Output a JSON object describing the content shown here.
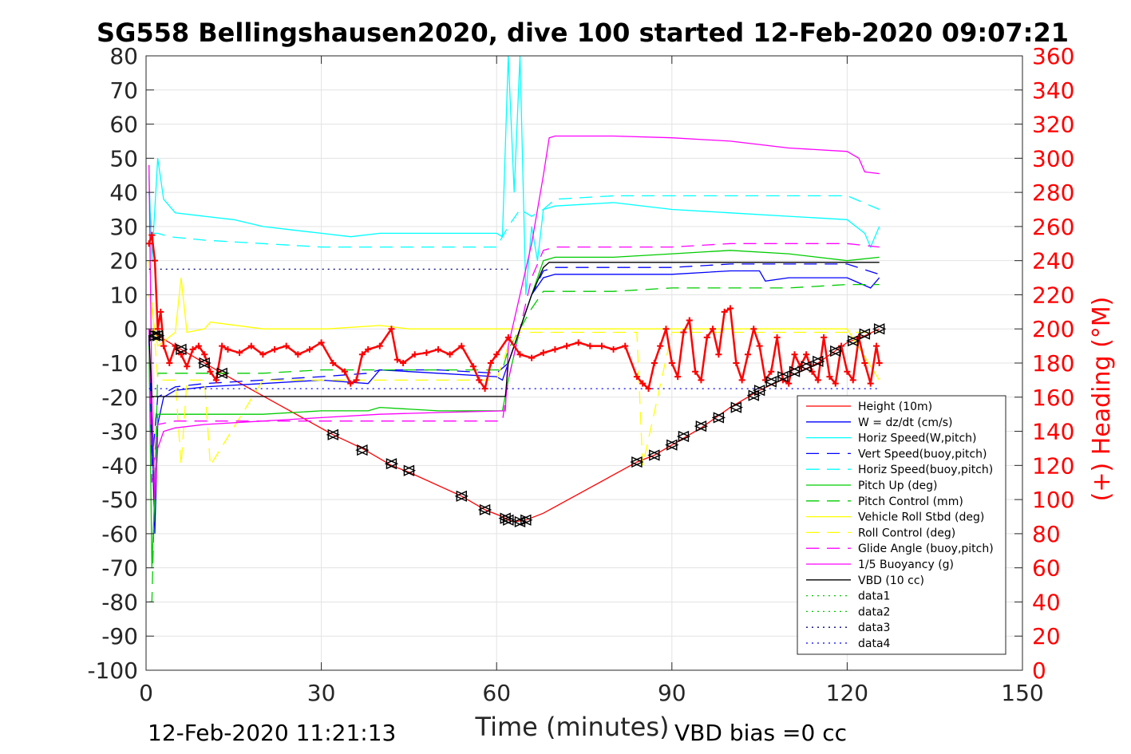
{
  "chart_data": {
    "type": "line",
    "title": "SG558 Bellingshausen2020, dive 100 started 12-Feb-2020 09:07:21",
    "xlabel": "Time (minutes)",
    "ylabel": "",
    "ylabel_right": "(+) Heading (°M)",
    "xlim": [
      0,
      150
    ],
    "ylim": [
      -100,
      80
    ],
    "ylim_right": [
      0,
      360
    ],
    "x_ticks": [
      "0",
      "30",
      "60",
      "90",
      "120",
      "150"
    ],
    "y_ticks": [
      "-100",
      "-90",
      "-80",
      "-70",
      "-60",
      "-50",
      "-40",
      "-30",
      "-20",
      "-10",
      "0",
      "10",
      "20",
      "30",
      "40",
      "50",
      "60",
      "70",
      "80"
    ],
    "y_ticks_right": [
      "0",
      "20",
      "40",
      "60",
      "80",
      "100",
      "120",
      "140",
      "160",
      "180",
      "200",
      "220",
      "240",
      "260",
      "280",
      "300",
      "320",
      "340",
      "360"
    ],
    "grid": true,
    "legend_position": "lower-right",
    "footer_left": "12-Feb-2020 11:21:13",
    "footer_right": "VBD bias =0 cc",
    "series": [
      {
        "name": "Height (10m)",
        "color": "#ff0000",
        "style": "solid",
        "x": [
          0.5,
          2,
          6,
          10,
          13,
          32,
          37,
          42,
          45,
          54,
          58,
          61,
          62,
          63,
          65,
          68,
          84,
          87,
          90,
          95,
          100,
          105,
          110,
          115,
          120,
          123,
          125.5
        ],
        "y": [
          0,
          -2,
          -6,
          -10,
          -13,
          -31,
          -35,
          -40,
          -42,
          -49,
          -53,
          -55,
          -56,
          -56.5,
          -56,
          -54,
          -39,
          -37,
          -34,
          -29,
          -23,
          -18,
          -14,
          -10,
          -4,
          -2,
          0
        ]
      },
      {
        "name": "W = dz/dt (cm/s)",
        "color": "#0000ff",
        "style": "solid",
        "x": [
          0.5,
          1,
          1.5,
          2,
          3,
          5,
          10,
          20,
          30,
          38,
          40,
          50,
          60,
          61,
          62,
          64,
          66,
          68,
          70,
          80,
          90,
          100,
          105,
          106,
          110,
          120,
          124,
          125.5
        ],
        "y": [
          -2,
          -30,
          -60,
          -28,
          -20,
          -18,
          -17,
          -16,
          -15,
          -16,
          -12,
          -13,
          -14,
          -15,
          -10,
          0,
          10,
          15,
          16,
          16,
          16,
          17,
          17,
          14,
          15,
          15,
          12,
          15
        ]
      },
      {
        "name": "Horiz Speed(W,pitch)",
        "color": "#00ffff",
        "style": "solid",
        "x": [
          0.5,
          1,
          2,
          3,
          5,
          10,
          15,
          20,
          25,
          30,
          35,
          40,
          50,
          60,
          61,
          62,
          63,
          64,
          65,
          66,
          67,
          68,
          70,
          80,
          90,
          100,
          110,
          120,
          123,
          124,
          125.5
        ],
        "y": [
          45,
          20,
          50,
          38,
          34,
          33,
          32,
          30,
          29,
          28,
          27,
          28,
          28,
          28,
          27,
          80,
          40,
          80,
          10,
          30,
          20,
          35,
          36,
          37,
          35,
          34,
          33,
          32,
          28,
          24,
          30
        ]
      },
      {
        "name": "Vert Speed(buoy,pitch)",
        "color": "#0000ff",
        "style": "dashed",
        "x": [
          0.5,
          1,
          2,
          5,
          10,
          20,
          30,
          38,
          40,
          50,
          60,
          62,
          64,
          66,
          68,
          70,
          80,
          90,
          100,
          110,
          120,
          125.5
        ],
        "y": [
          -3,
          -40,
          -20,
          -17,
          -16,
          -15,
          -14,
          -13,
          -12,
          -12,
          -13,
          -10,
          0,
          10,
          17,
          18,
          18,
          18,
          19,
          19,
          19,
          16
        ]
      },
      {
        "name": "Horiz Speed(buoy,pitch)",
        "color": "#00ffff",
        "style": "dashed",
        "x": [
          0.5,
          1,
          2,
          4,
          10,
          20,
          30,
          40,
          50,
          60,
          62,
          64,
          66,
          68,
          70,
          80,
          90,
          100,
          110,
          120,
          125.5
        ],
        "y": [
          40,
          28,
          28,
          27,
          26,
          25,
          24,
          24,
          24,
          24,
          30,
          35,
          33,
          35,
          38,
          39,
          39,
          39,
          39,
          39,
          35
        ]
      },
      {
        "name": "Pitch Up (deg)",
        "color": "#00cc00",
        "style": "solid",
        "x": [
          0.5,
          1,
          2,
          5,
          10,
          20,
          30,
          38,
          40,
          50,
          60,
          61,
          62,
          64,
          66,
          68,
          70,
          80,
          90,
          100,
          110,
          120,
          125.5
        ],
        "y": [
          -5,
          -70,
          -25,
          -25,
          -25,
          -25,
          -24,
          -24,
          -23,
          -24,
          -24,
          -24,
          -15,
          0,
          10,
          20,
          21,
          21,
          22,
          23,
          22,
          20,
          21
        ]
      },
      {
        "name": "Pitch Control (mm)",
        "color": "#00cc00",
        "style": "dashed",
        "x": [
          0.5,
          1,
          2,
          5,
          10,
          20,
          30,
          40,
          50,
          60,
          61,
          62,
          64,
          66,
          68,
          70,
          80,
          90,
          100,
          110,
          120,
          125.5
        ],
        "y": [
          -80,
          -80,
          -13,
          -13,
          -13,
          -13,
          -12,
          -12,
          -12,
          -12,
          -12,
          -6,
          0,
          6,
          11,
          11,
          11,
          12,
          12,
          12,
          13,
          13
        ]
      },
      {
        "name": "Vehicle Roll Stbd (deg)",
        "color": "#ffff00",
        "style": "solid",
        "x": [
          0.5,
          2,
          5,
          6,
          7,
          10,
          11,
          20,
          30,
          31,
          40,
          45,
          50,
          55,
          60,
          62,
          64,
          70,
          80,
          85,
          90,
          95,
          100,
          105,
          110,
          115,
          120,
          125.5
        ],
        "y": [
          10,
          -5,
          -1,
          15,
          -1,
          0,
          2,
          0,
          0,
          0,
          1,
          0,
          0,
          0,
          0,
          0,
          0,
          0,
          0,
          0,
          0,
          0,
          0,
          0,
          0,
          0,
          0,
          -15
        ]
      },
      {
        "name": "Roll Control (deg)",
        "color": "#ffff00",
        "style": "dashed",
        "x": [
          0.5,
          2,
          5,
          6,
          7,
          10,
          11,
          20,
          30,
          40,
          50,
          60,
          62,
          64,
          70,
          80,
          84,
          85,
          90,
          95,
          100,
          105,
          110,
          115,
          120,
          125.5
        ],
        "y": [
          20,
          -15,
          -15,
          -40,
          -15,
          -15,
          -40,
          -15,
          -15,
          -15,
          -15,
          -15,
          -5,
          -1,
          -1,
          -1,
          -1,
          -40,
          -1,
          -1,
          -1,
          -1,
          -1,
          -1,
          -1,
          -1
        ]
      },
      {
        "name": "Glide Angle (buoy,pitch)",
        "color": "#ff00ff",
        "style": "dashed",
        "x": [
          0.5,
          1,
          2,
          5,
          10,
          20,
          30,
          40,
          50,
          60,
          61,
          62,
          64,
          66,
          68,
          70,
          80,
          90,
          100,
          110,
          120,
          125.5
        ],
        "y": [
          0,
          -45,
          -28,
          -27,
          -27,
          -27,
          -27,
          -27,
          -27,
          -27,
          -27,
          -15,
          0,
          15,
          23,
          24,
          24,
          24,
          25,
          25,
          25,
          24
        ]
      },
      {
        "name": "1/5 Buoyancy (g)",
        "color": "#ff00ff",
        "style": "solid",
        "x": [
          0.5,
          1,
          1.5,
          2,
          3,
          5,
          10,
          20,
          30,
          40,
          50,
          61.5,
          62,
          64,
          66,
          68,
          69,
          70,
          80,
          90,
          100,
          110,
          120,
          122,
          123,
          125.5
        ],
        "y": [
          48,
          -20,
          -50,
          -35,
          -30,
          -29,
          -28,
          -27,
          -26,
          -25,
          -24.5,
          -24,
          -5,
          10,
          25,
          45,
          56,
          56.5,
          56.5,
          56,
          55,
          53,
          52,
          50,
          46,
          45.5
        ]
      },
      {
        "name": "VBD (10 cc)",
        "color": "#000000",
        "style": "solid",
        "x": [
          0.5,
          1,
          2,
          5,
          10,
          20,
          30,
          40,
          50,
          61.5,
          62,
          64,
          66,
          68,
          69,
          70,
          80,
          90,
          100,
          110,
          120,
          125.5
        ],
        "y": [
          -2,
          -19.8,
          -19.8,
          -19.8,
          -19.8,
          -19.8,
          -19.8,
          -19.8,
          -19.8,
          -19.8,
          -10,
          0,
          10,
          18,
          19.5,
          19.5,
          19.5,
          19.5,
          19.5,
          19.5,
          19.5,
          19.5
        ]
      },
      {
        "name": "data1",
        "color": "#00cc00",
        "style": "dotted",
        "x": [],
        "y": []
      },
      {
        "name": "data2",
        "color": "#00cc00",
        "style": "dotted",
        "x": [],
        "y": []
      },
      {
        "name": "data3",
        "color": "#000080",
        "style": "dotted",
        "x": [
          0.5,
          62
        ],
        "y": [
          17.5,
          17.5
        ]
      },
      {
        "name": "data4",
        "color": "#0000ff",
        "style": "dotted",
        "x": [
          0.5,
          125.5
        ],
        "y": [
          -17.5,
          -17.5
        ]
      }
    ],
    "heading_series": {
      "color": "#ff0000",
      "marker": "+",
      "axis": "right",
      "x": [
        0.5,
        1,
        1.5,
        2,
        2.5,
        3,
        4,
        5,
        6,
        7,
        8,
        9,
        10,
        11,
        12,
        13,
        14,
        16,
        18,
        20,
        22,
        24,
        26,
        28,
        30,
        32,
        34,
        35,
        36,
        37,
        38,
        40,
        42,
        43,
        44,
        46,
        48,
        50,
        52,
        54,
        56,
        57,
        58,
        59,
        60,
        62,
        64,
        66,
        68,
        70,
        72,
        74,
        76,
        78,
        80,
        82,
        84,
        85,
        86,
        87,
        88,
        89,
        90,
        91,
        92,
        93,
        94,
        95,
        96,
        97,
        98,
        99,
        100,
        101,
        102,
        103,
        104,
        105,
        106,
        107,
        108,
        109,
        110,
        111,
        112,
        113,
        114,
        115,
        116,
        117,
        118,
        119,
        120,
        121,
        122,
        123,
        124,
        125,
        125.5
      ],
      "y": [
        250,
        255,
        240,
        200,
        210,
        190,
        180,
        190,
        185,
        178,
        188,
        190,
        185,
        175,
        170,
        190,
        188,
        186,
        190,
        185,
        188,
        190,
        185,
        188,
        192,
        180,
        175,
        168,
        170,
        185,
        188,
        190,
        200,
        182,
        180,
        185,
        186,
        188,
        185,
        190,
        178,
        170,
        165,
        180,
        185,
        195,
        185,
        183,
        186,
        188,
        190,
        192,
        190,
        190,
        188,
        190,
        172,
        168,
        165,
        180,
        190,
        200,
        180,
        172,
        198,
        205,
        175,
        170,
        195,
        200,
        185,
        210,
        212,
        180,
        170,
        185,
        200,
        190,
        170,
        175,
        195,
        170,
        168,
        185,
        178,
        185,
        175,
        170,
        195,
        172,
        168,
        190,
        175,
        170,
        195,
        180,
        168,
        190,
        180
      ]
    },
    "marker_series": {
      "color": "#000000",
      "markers": [
        "triangle-left",
        "triangle-right"
      ],
      "x": [
        1.5,
        2,
        6,
        10,
        13,
        32,
        37,
        42,
        45,
        54,
        58,
        61.5,
        62,
        64,
        65,
        84,
        87,
        90,
        92,
        95,
        98,
        101,
        104,
        105,
        107,
        109,
        111,
        113,
        115,
        118,
        121,
        123,
        125.5
      ],
      "y": [
        -2,
        -2,
        -6,
        -10,
        -13,
        -31,
        -35.5,
        -39.5,
        -41.5,
        -49,
        -53,
        -55.5,
        -56,
        -56.5,
        -56,
        -39,
        -37,
        -34,
        -31.5,
        -28.5,
        -26,
        -23,
        -19.5,
        -18,
        -15.5,
        -14,
        -12.5,
        -11,
        -9.5,
        -6.5,
        -3.5,
        -1.5,
        0
      ]
    }
  }
}
